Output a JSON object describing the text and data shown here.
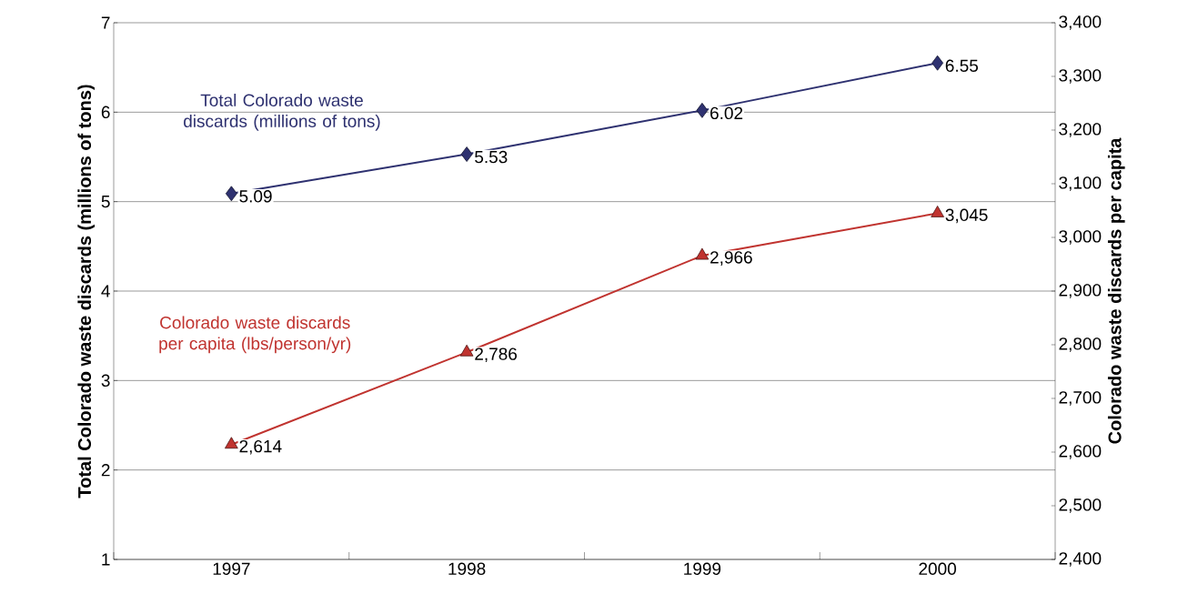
{
  "chart_data": {
    "type": "line",
    "categories": [
      "1997",
      "1998",
      "1999",
      "2000"
    ],
    "ylabel": "Total Colorado waste discards (millions of tons)",
    "y2label": "Colorado waste discards per capita",
    "ylim": [
      1,
      7
    ],
    "yticks": [
      1,
      2,
      3,
      4,
      5,
      6,
      7
    ],
    "y2lim": [
      2400,
      3400
    ],
    "y2ticks": [
      {
        "value": 2400,
        "label": "2,400"
      },
      {
        "value": 2500,
        "label": "2,500"
      },
      {
        "value": 2600,
        "label": "2,600"
      },
      {
        "value": 2700,
        "label": "2,700"
      },
      {
        "value": 2800,
        "label": "2,800"
      },
      {
        "value": 2900,
        "label": "2,900"
      },
      {
        "value": 3000,
        "label": "3,000"
      },
      {
        "value": 3100,
        "label": "3,100"
      },
      {
        "value": 3200,
        "label": "3,200"
      },
      {
        "value": 3300,
        "label": "3,300"
      },
      {
        "value": 3400,
        "label": "3,400"
      }
    ],
    "grid": "y",
    "series": [
      {
        "name": "Total Colorado waste discards (millions of tons)",
        "color": "#2e3170",
        "marker": "diamond",
        "axis": "y",
        "values": [
          5.09,
          5.53,
          6.02,
          6.55
        ],
        "value_labels": [
          "5.09",
          "5.53",
          "6.02",
          "6.55"
        ]
      },
      {
        "name": "Colorado waste discards per capita (lbs/person/yr)",
        "color": "#c0332f",
        "marker": "triangle",
        "axis": "y2",
        "values": [
          2614,
          2786,
          2966,
          3045
        ],
        "value_labels": [
          "2,614",
          "2,786",
          "2,966",
          "3,045"
        ]
      }
    ]
  }
}
